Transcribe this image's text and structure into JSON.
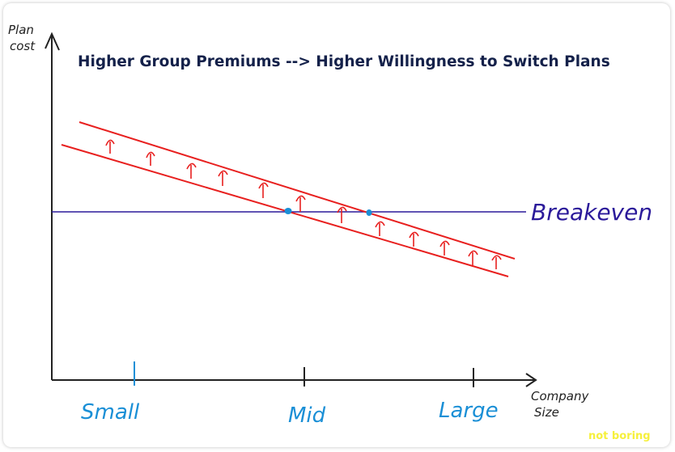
{
  "title": "Higher Group Premiums --> Higher Willingness to Switch Plans",
  "y_axis_label": [
    "Plan",
    "cost"
  ],
  "x_axis_label": [
    "Company",
    "Size"
  ],
  "categories": [
    "Small",
    "Mid",
    "Large"
  ],
  "reference_line_label": "Breakeven",
  "watermark": "not boring",
  "colors": {
    "title": "#14214a",
    "axis": "#222222",
    "cost_lines": "#e8201f",
    "breakeven": "#2b1a9a",
    "category_labels": "#1a8fd6",
    "intersection_points": "#1a8fd6",
    "watermark": "#f6f03c"
  }
}
